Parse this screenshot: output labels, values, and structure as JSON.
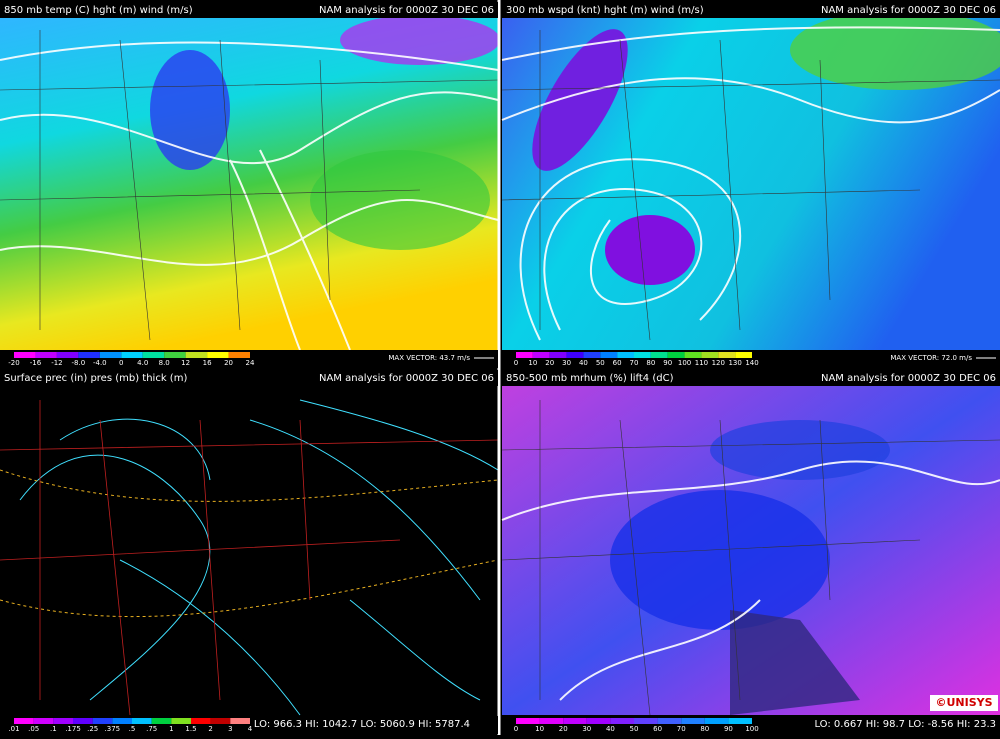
{
  "panels": [
    {
      "title": "850 mb temp (C) hght (m) wind (m/s)",
      "analysis": "NAM analysis for 0000Z 30 DEC 06",
      "scale": [
        "-20",
        "-16",
        "-12",
        "-8.0",
        "-4.0",
        "0",
        "4.0",
        "8.0",
        "12",
        "16",
        "20",
        "24"
      ],
      "note": "MAX VECTOR: 43.7 m/s"
    },
    {
      "title": "300 mb wspd (knt) hght (m) wind (m/s)",
      "analysis": "NAM analysis for 0000Z 30 DEC 06",
      "scale": [
        "0",
        "10",
        "20",
        "30",
        "40",
        "50",
        "60",
        "70",
        "80",
        "90",
        "100",
        "110",
        "120",
        "130",
        "140"
      ],
      "note": "MAX VECTOR: 72.0 m/s"
    },
    {
      "title": "Surface prec (in) pres (mb) thick (m)",
      "analysis": "NAM analysis for 0000Z 30 DEC 06",
      "scale": [
        ".01",
        ".05",
        ".1",
        ".175",
        ".25",
        ".375",
        ".5",
        ".75",
        "1",
        "1.5",
        "2",
        "3",
        "4"
      ],
      "note": "LO: 966.3  HI: 1042.7  LO: 5060.9  HI: 5787.4"
    },
    {
      "title": "850-500 mb mrhum (%) lift4 (dC)",
      "analysis": "NAM analysis for 0000Z 30 DEC 06",
      "scale": [
        "0",
        "10",
        "20",
        "30",
        "40",
        "50",
        "60",
        "70",
        "80",
        "90",
        "100"
      ],
      "note": "LO: 0.667  HI: 98.7  LO: -8.56  HI: 23.3"
    }
  ],
  "logo": "©UNISYS"
}
